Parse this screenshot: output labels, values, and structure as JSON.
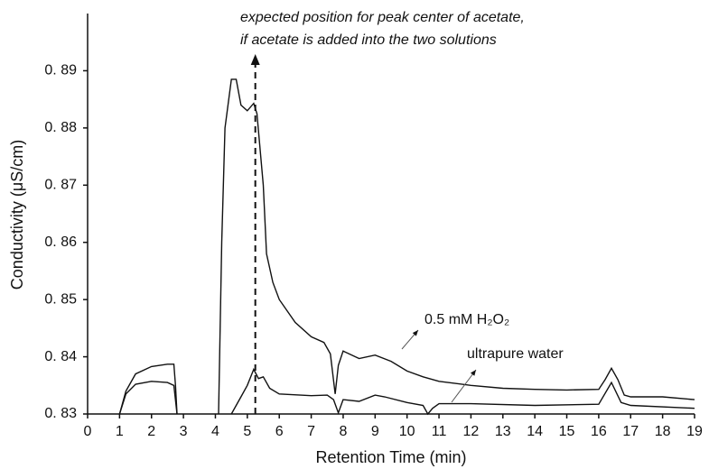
{
  "chart_data": {
    "type": "line",
    "xlabel": "Retention Time (min)",
    "ylabel": "Conductivity (μS/cm)",
    "xlim": [
      0,
      19
    ],
    "xticks": [
      0,
      1,
      2,
      3,
      4,
      5,
      6,
      7,
      8,
      9,
      10,
      11,
      12,
      13,
      14,
      15,
      16,
      17,
      18,
      19
    ],
    "ylim": [
      0.83,
      0.9
    ],
    "yticks": [
      {
        "value": 0.83,
        "label": "0. 83"
      },
      {
        "value": 0.84,
        "label": "0. 84"
      },
      {
        "value": 0.85,
        "label": "0. 85"
      },
      {
        "value": 0.86,
        "label": "0. 86"
      },
      {
        "value": 0.87,
        "label": "0. 87"
      },
      {
        "value": 0.88,
        "label": "0. 88"
      },
      {
        "value": 0.89,
        "label": "0. 89"
      }
    ],
    "annotation": {
      "lines": [
        "expected position for peak center of acetate,",
        "if acetate is added into the two solutions"
      ],
      "x": 5.25
    },
    "series": [
      {
        "name": "0.5 mM H₂O₂",
        "color": "#111111",
        "x": [
          1.0,
          1.2,
          1.5,
          2.0,
          2.5,
          2.7,
          2.75,
          2.8,
          3.5,
          4.1,
          4.2,
          4.3,
          4.5,
          4.65,
          4.8,
          5.0,
          5.2,
          5.3,
          5.5,
          5.6,
          5.8,
          6.0,
          6.5,
          7.0,
          7.4,
          7.6,
          7.75,
          7.85,
          8.0,
          8.5,
          9.0,
          9.5,
          10,
          10.5,
          11,
          12,
          13,
          14,
          15,
          16,
          16.2,
          16.4,
          16.6,
          16.8,
          17,
          18,
          19
        ],
        "values": [
          0.83,
          0.834,
          0.837,
          0.8383,
          0.8387,
          0.8387,
          0.835,
          0.83,
          null,
          0.83,
          0.86,
          0.88,
          0.8885,
          0.8885,
          0.884,
          0.883,
          0.8843,
          0.8825,
          0.87,
          0.858,
          0.853,
          0.85,
          0.846,
          0.8435,
          0.8425,
          0.8405,
          0.8335,
          0.8385,
          0.841,
          0.8397,
          0.8403,
          0.8392,
          0.8375,
          0.8365,
          0.8357,
          0.835,
          0.8345,
          0.8343,
          0.8342,
          0.8343,
          0.836,
          0.838,
          0.836,
          0.8333,
          0.833,
          0.833,
          0.8325
        ]
      },
      {
        "name": "ultrapure water",
        "color": "#111111",
        "x": [
          1.0,
          1.2,
          1.5,
          2.0,
          2.5,
          2.7,
          2.8,
          3.5,
          4.5,
          4.8,
          5.0,
          5.2,
          5.35,
          5.5,
          5.7,
          6.0,
          7.0,
          7.5,
          7.7,
          7.85,
          8.0,
          8.5,
          9.0,
          9.3,
          10,
          10.5,
          10.65,
          10.8,
          11,
          12,
          14,
          16,
          16.4,
          16.7,
          17,
          19
        ],
        "values": [
          0.83,
          0.8335,
          0.8352,
          0.8357,
          0.8355,
          0.835,
          0.83,
          null,
          0.83,
          0.833,
          0.835,
          0.8378,
          0.8362,
          0.8365,
          0.8345,
          0.8335,
          0.8332,
          0.8333,
          0.8325,
          0.8302,
          0.8325,
          0.8322,
          0.8333,
          0.833,
          0.832,
          0.8315,
          0.83,
          0.831,
          0.8318,
          0.8318,
          0.8315,
          0.8317,
          0.8355,
          0.832,
          0.8315,
          0.831
        ]
      }
    ]
  }
}
